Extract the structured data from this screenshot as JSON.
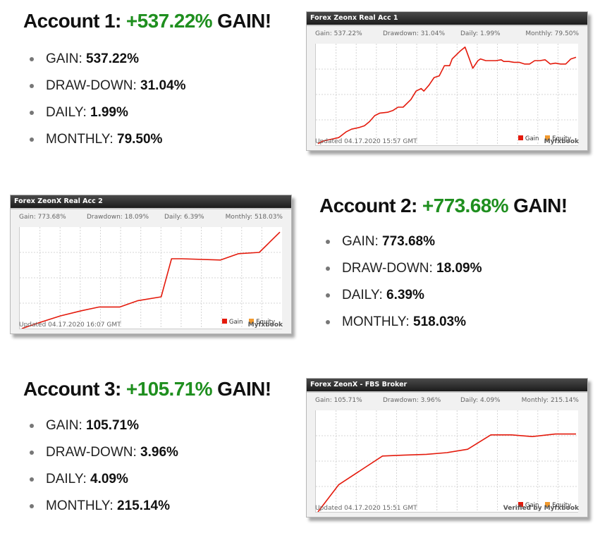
{
  "accounts": [
    {
      "title_prefix": "Account 1:",
      "gain_value": "+537.22%",
      "title_suffix": "GAIN!",
      "stats": [
        {
          "label": "GAIN:",
          "value": "537.22%"
        },
        {
          "label": "DRAW-DOWN:",
          "value": "31.04%"
        },
        {
          "label": "DAILY:",
          "value": "1.99%"
        },
        {
          "label": "MONTHLY:",
          "value": "79.50%"
        }
      ]
    },
    {
      "title_prefix": "Account 2:",
      "gain_value": "+773.68%",
      "title_suffix": "GAIN!",
      "stats": [
        {
          "label": "GAIN:",
          "value": "773.68%"
        },
        {
          "label": "DRAW-DOWN:",
          "value": "18.09%"
        },
        {
          "label": "DAILY:",
          "value": "6.39%"
        },
        {
          "label": "MONTHLY:",
          "value": "518.03%"
        }
      ]
    },
    {
      "title_prefix": "Account 3:",
      "gain_value": "+105.71%",
      "title_suffix": "GAIN!",
      "stats": [
        {
          "label": "GAIN:",
          "value": "105.71%"
        },
        {
          "label": "DRAW-DOWN:",
          "value": "3.96%"
        },
        {
          "label": "DAILY:",
          "value": "4.09%"
        },
        {
          "label": "MONTHLY:",
          "value": "215.14%"
        }
      ]
    }
  ],
  "widgets": [
    {
      "header": "Forex Zeonx Real Acc 1",
      "gain": "Gain: 537.22%",
      "drawdown": "Drawdown: 31.04%",
      "daily": "Daily: 1.99%",
      "monthly": "Monthly: 79.50%",
      "legend_gain": "Gain",
      "legend_equity": "Equity",
      "updated": "Updated 04.17.2020 15:57 GMT",
      "brand": "Myfxbook"
    },
    {
      "header": "Forex ZeonX Real Acc 2",
      "gain": "Gain: 773.68%",
      "drawdown": "Drawdown: 18.09%",
      "daily": "Daily: 6.39%",
      "monthly": "Monthly: 518.03%",
      "legend_gain": "Gain",
      "legend_equity": "Equity",
      "updated": "Updated 04.17.2020 16:07 GMT",
      "brand": "Myfxbook"
    },
    {
      "header": "Forex ZeonX - FBS Broker",
      "gain": "Gain: 105.71%",
      "drawdown": "Drawdown: 3.96%",
      "daily": "Daily: 4.09%",
      "monthly": "Monthly: 215.14%",
      "legend_gain": "Gain",
      "legend_equity": "Equity",
      "updated": "Updated 04.17.2020 15:51 GMT",
      "brand": "Verified by Myfxbook"
    }
  ],
  "colors": {
    "gain_text": "#1f8f1f",
    "gain_line": "#e41a0c",
    "equity_line": "#f29a2e",
    "grid": "#d4d4d4"
  },
  "chart_data": [
    {
      "type": "line",
      "grid": true,
      "ylim": [
        0,
        600
      ],
      "series": [
        {
          "name": "Gain",
          "x": [
            0,
            2,
            5,
            8,
            11,
            13,
            16,
            18,
            20,
            22,
            24,
            27,
            29,
            31,
            33,
            35,
            36,
            38,
            40,
            41,
            43,
            45,
            47,
            49,
            51,
            52,
            55,
            57,
            60,
            62,
            63,
            65,
            67,
            69,
            71,
            72,
            74,
            76,
            78,
            80,
            82,
            84,
            86,
            88,
            90,
            92,
            94,
            96,
            98,
            100
          ],
          "values": [
            10,
            25,
            35,
            45,
            80,
            95,
            105,
            115,
            140,
            175,
            190,
            195,
            205,
            225,
            225,
            255,
            270,
            320,
            335,
            320,
            355,
            400,
            410,
            470,
            470,
            510,
            555,
            580,
            455,
            500,
            510,
            500,
            500,
            500,
            505,
            495,
            495,
            490,
            490,
            480,
            480,
            500,
            500,
            505,
            480,
            485,
            480,
            480,
            510,
            520
          ]
        }
      ]
    },
    {
      "type": "line",
      "grid": true,
      "ylim": [
        0,
        800
      ],
      "series": [
        {
          "name": "Gain",
          "x": [
            0,
            8,
            15,
            23,
            30,
            38,
            45,
            54,
            58,
            62,
            77,
            84,
            92,
            100
          ],
          "values": [
            0,
            55,
            100,
            140,
            170,
            170,
            220,
            250,
            550,
            550,
            540,
            590,
            600,
            760
          ]
        }
      ]
    },
    {
      "type": "line",
      "grid": true,
      "ylim": [
        0,
        120
      ],
      "series": [
        {
          "name": "Gain",
          "x": [
            0,
            8,
            17,
            25,
            33,
            42,
            50,
            58,
            67,
            75,
            83,
            92,
            100
          ],
          "values": [
            0,
            32,
            50,
            66,
            67,
            68,
            70,
            74,
            91,
            91,
            89,
            92,
            92
          ]
        }
      ]
    }
  ]
}
